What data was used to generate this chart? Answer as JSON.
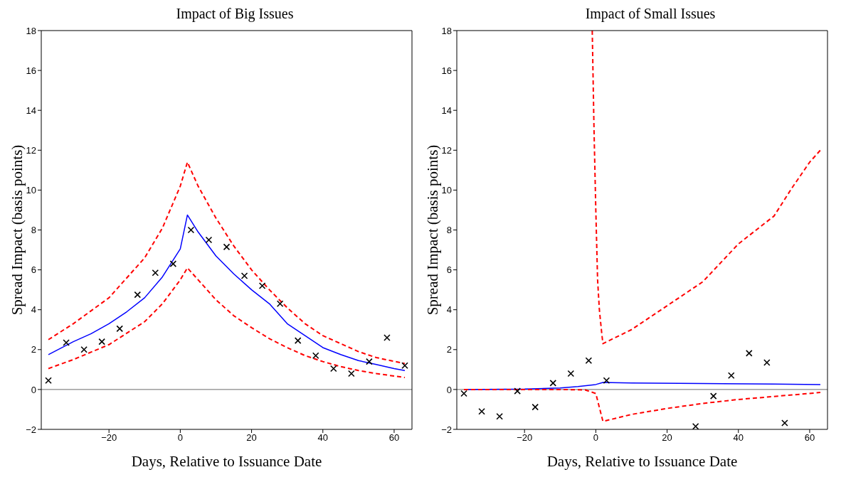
{
  "chart_data": [
    {
      "type": "line",
      "title": "Impact of Big Issues",
      "xlabel": "Days, Relative to Issuance Date",
      "ylabel": "Spread Impact (basis points)",
      "xlim": [
        -39,
        65
      ],
      "xticks": [
        -20,
        0,
        20,
        40,
        60
      ],
      "ylim": [
        -2,
        18
      ],
      "yticks": [
        -2,
        0,
        2,
        4,
        6,
        8,
        10,
        12,
        14,
        16,
        18
      ],
      "ref_lines": [
        {
          "axis": "y",
          "value": 0,
          "color": "#000000"
        }
      ],
      "series": [
        {
          "color": "#ff0000",
          "line_style": "dashed",
          "x": [
            -37,
            -30,
            -20,
            -10,
            -5,
            0,
            2,
            5,
            10,
            15,
            20,
            25,
            30,
            35,
            40,
            45,
            50,
            55,
            63
          ],
          "values": [
            2.5,
            3.3,
            4.6,
            6.6,
            8.1,
            10.2,
            11.4,
            10.2,
            8.6,
            7.2,
            6.0,
            5.0,
            4.1,
            3.3,
            2.7,
            2.3,
            1.9,
            1.6,
            1.3
          ]
        },
        {
          "color": "#ff0000",
          "line_style": "dashed",
          "x": [
            -37,
            -30,
            -20,
            -10,
            -5,
            0,
            2,
            5,
            10,
            15,
            20,
            25,
            30,
            35,
            40,
            45,
            50,
            55,
            63
          ],
          "values": [
            1.05,
            1.5,
            2.25,
            3.4,
            4.3,
            5.5,
            6.1,
            5.5,
            4.5,
            3.7,
            3.1,
            2.55,
            2.1,
            1.7,
            1.4,
            1.15,
            0.95,
            0.8,
            0.6
          ]
        },
        {
          "color": "#0000ff",
          "line_style": "solid",
          "x": [
            -37,
            -30,
            -25,
            -20,
            -15,
            -10,
            -5,
            0,
            2,
            5,
            10,
            15,
            20,
            25,
            30,
            35,
            40,
            45,
            50,
            55,
            60,
            63
          ],
          "values": [
            1.75,
            2.4,
            2.8,
            3.3,
            3.9,
            4.6,
            5.65,
            7.05,
            8.75,
            7.9,
            6.7,
            5.8,
            5.0,
            4.3,
            3.3,
            2.7,
            2.1,
            1.75,
            1.45,
            1.25,
            1.05,
            0.95
          ]
        },
        {
          "type": "scatter",
          "color": "#000000",
          "marker": "cross",
          "x": [
            -37,
            -32,
            -27,
            -22,
            -17,
            -12,
            -7,
            -2,
            3,
            8,
            13,
            18,
            23,
            28,
            33,
            38,
            43,
            48,
            53,
            58,
            63
          ],
          "values": [
            0.45,
            2.35,
            2.0,
            2.4,
            3.05,
            4.75,
            5.85,
            6.3,
            8.0,
            7.5,
            7.15,
            5.7,
            5.2,
            4.3,
            2.45,
            1.7,
            1.05,
            0.8,
            1.4,
            2.6,
            1.2
          ]
        }
      ]
    },
    {
      "type": "line",
      "title": "Impact of Small Issues",
      "xlabel": "Days, Relative to Issuance Date",
      "ylabel": "Spread Impact (basis points)",
      "xlim": [
        -39,
        65
      ],
      "xticks": [
        -20,
        0,
        20,
        40,
        60
      ],
      "ylim": [
        -2,
        18
      ],
      "yticks": [
        -2,
        0,
        2,
        4,
        6,
        8,
        10,
        12,
        14,
        16,
        18
      ],
      "ref_lines": [
        {
          "axis": "y",
          "value": 0,
          "color": "#000000"
        }
      ],
      "series": [
        {
          "type": "scatter",
          "color": "#000000",
          "marker": "cross",
          "x": [
            -37,
            -32,
            -27,
            -22,
            -17,
            -12,
            -7,
            -2,
            3,
            28,
            33,
            38,
            43,
            48,
            53
          ],
          "values": [
            -0.2,
            -1.1,
            -1.35,
            -0.08,
            -0.88,
            0.32,
            0.8,
            1.45,
            0.45,
            -1.85,
            -0.33,
            0.7,
            1.82,
            1.35,
            -1.68
          ]
        },
        {
          "color": "#0000ff",
          "line_style": "solid",
          "x": [
            -37,
            -20,
            -10,
            -5,
            0,
            2,
            10,
            30,
            50,
            63
          ],
          "values": [
            0,
            0.02,
            0.08,
            0.15,
            0.25,
            0.35,
            0.33,
            0.3,
            0.27,
            0.25
          ]
        },
        {
          "color": "#ff0000",
          "line_style": "dashed",
          "x": [
            -1,
            -0.5,
            0,
            0.5,
            1,
            1.7,
            2,
            10,
            20,
            30,
            40,
            50,
            55,
            60,
            63
          ],
          "values": [
            18,
            13,
            9,
            5.5,
            4,
            2.75,
            2.3,
            3.0,
            4.2,
            5.4,
            7.3,
            8.7,
            10.1,
            11.4,
            12.0
          ]
        },
        {
          "color": "#ff0000",
          "line_style": "dashed",
          "x": [
            -37,
            -10,
            -3,
            0,
            1,
            2,
            10,
            20,
            30,
            40,
            50,
            63
          ],
          "values": [
            0,
            0,
            -0.02,
            -0.2,
            -0.9,
            -1.6,
            -1.25,
            -0.95,
            -0.7,
            -0.5,
            -0.35,
            -0.15
          ]
        }
      ]
    }
  ]
}
